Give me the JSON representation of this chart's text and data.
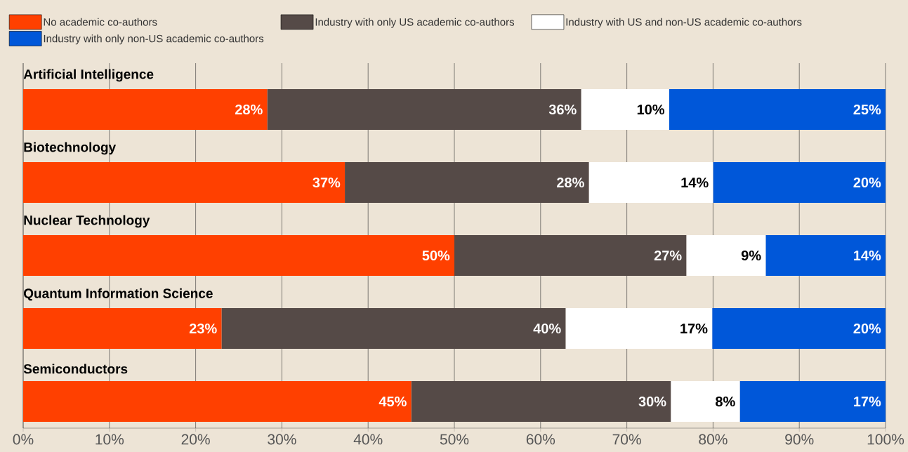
{
  "chart_data": {
    "type": "bar",
    "orientation": "horizontal",
    "stacked": true,
    "grid": "x",
    "legend": "top left",
    "categories": [
      "Artificial Intelligence",
      "Biotechnology",
      "Nuclear Technology",
      "Quantum Information Science",
      "Semiconductors"
    ],
    "series": [
      {
        "name": "No academic co-authors",
        "color": "#ff4000",
        "values": [
          28.3,
          37.3,
          50,
          23,
          45
        ],
        "value_labels": [
          "28%",
          "37%",
          "50%",
          "23%",
          "45%"
        ]
      },
      {
        "name": "Industry with only US academic co-authors",
        "color": "#554a47",
        "values": [
          36.4,
          28.3,
          26.9,
          39.9,
          30.1
        ],
        "value_labels": [
          "36%",
          "28%",
          "27%",
          "40%",
          "30%"
        ]
      },
      {
        "name": "Industry with US and non-US academic co-authors",
        "color": "#ffffff",
        "values": [
          10.2,
          14.4,
          9.2,
          17,
          8
        ],
        "value_labels": [
          "10%",
          "14%",
          "9%",
          "17%",
          "8%"
        ]
      },
      {
        "name": "Industry with only non-US academic co-authors",
        "color": "#0057d9",
        "values": [
          25.1,
          20,
          13.9,
          20.1,
          16.9
        ],
        "value_labels": [
          "25%",
          "20%",
          "14%",
          "20%",
          "17%"
        ]
      }
    ],
    "xlim": [
      0,
      100
    ],
    "xticks": [
      {
        "value": 0,
        "label": "0%"
      },
      {
        "value": 10,
        "label": "10%"
      },
      {
        "value": 20,
        "label": "20%"
      },
      {
        "value": 30,
        "label": "30%"
      },
      {
        "value": 40,
        "label": "40%"
      },
      {
        "value": 50,
        "label": "50%"
      },
      {
        "value": 60,
        "label": "60%"
      },
      {
        "value": 70,
        "label": "70%"
      },
      {
        "value": 80,
        "label": "80%"
      },
      {
        "value": 90,
        "label": "90%"
      },
      {
        "value": 100,
        "label": "100%"
      }
    ]
  }
}
